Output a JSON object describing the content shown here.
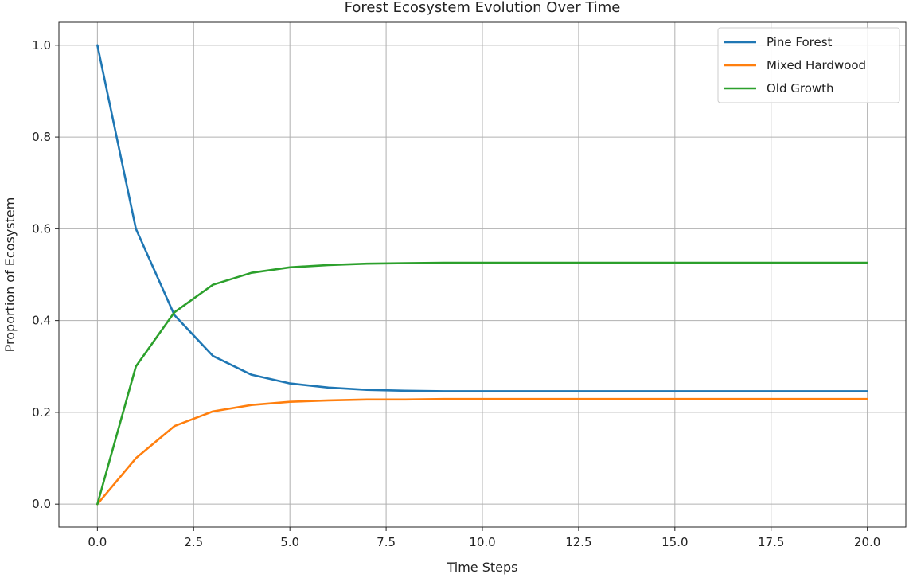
{
  "chart_data": {
    "type": "line",
    "title": "Forest Ecosystem Evolution Over Time",
    "xlabel": "Time Steps",
    "ylabel": "Proportion of Ecosystem",
    "xlim": [
      -1,
      21
    ],
    "ylim": [
      -0.05,
      1.05
    ],
    "xticks": [
      0.0,
      2.5,
      5.0,
      7.5,
      10.0,
      12.5,
      15.0,
      17.5,
      20.0
    ],
    "xtick_labels": [
      "0.0",
      "2.5",
      "5.0",
      "7.5",
      "10.0",
      "12.5",
      "15.0",
      "17.5",
      "20.0"
    ],
    "yticks": [
      0.0,
      0.2,
      0.4,
      0.6,
      0.8,
      1.0
    ],
    "ytick_labels": [
      "0.0",
      "0.2",
      "0.4",
      "0.6",
      "0.8",
      "1.0"
    ],
    "grid": true,
    "legend_position": "top-right",
    "x": [
      0,
      1,
      2,
      3,
      4,
      5,
      6,
      7,
      8,
      9,
      10,
      11,
      12,
      13,
      14,
      15,
      16,
      17,
      18,
      19,
      20
    ],
    "series": [
      {
        "name": "Pine Forest",
        "color": "#1f77b4",
        "values": [
          1.0,
          0.6,
          0.412,
          0.323,
          0.282,
          0.263,
          0.254,
          0.249,
          0.247,
          0.246,
          0.246,
          0.246,
          0.246,
          0.246,
          0.246,
          0.246,
          0.246,
          0.246,
          0.246,
          0.246,
          0.246
        ]
      },
      {
        "name": "Mixed Hardwood",
        "color": "#ff7f0e",
        "values": [
          0.0,
          0.1,
          0.17,
          0.202,
          0.216,
          0.223,
          0.226,
          0.228,
          0.228,
          0.229,
          0.229,
          0.229,
          0.229,
          0.229,
          0.229,
          0.229,
          0.229,
          0.229,
          0.229,
          0.229,
          0.229
        ]
      },
      {
        "name": "Old Growth",
        "color": "#2ca02c",
        "values": [
          0.0,
          0.3,
          0.418,
          0.478,
          0.504,
          0.516,
          0.521,
          0.524,
          0.525,
          0.526,
          0.526,
          0.526,
          0.526,
          0.526,
          0.526,
          0.526,
          0.526,
          0.526,
          0.526,
          0.526,
          0.526
        ]
      }
    ]
  }
}
